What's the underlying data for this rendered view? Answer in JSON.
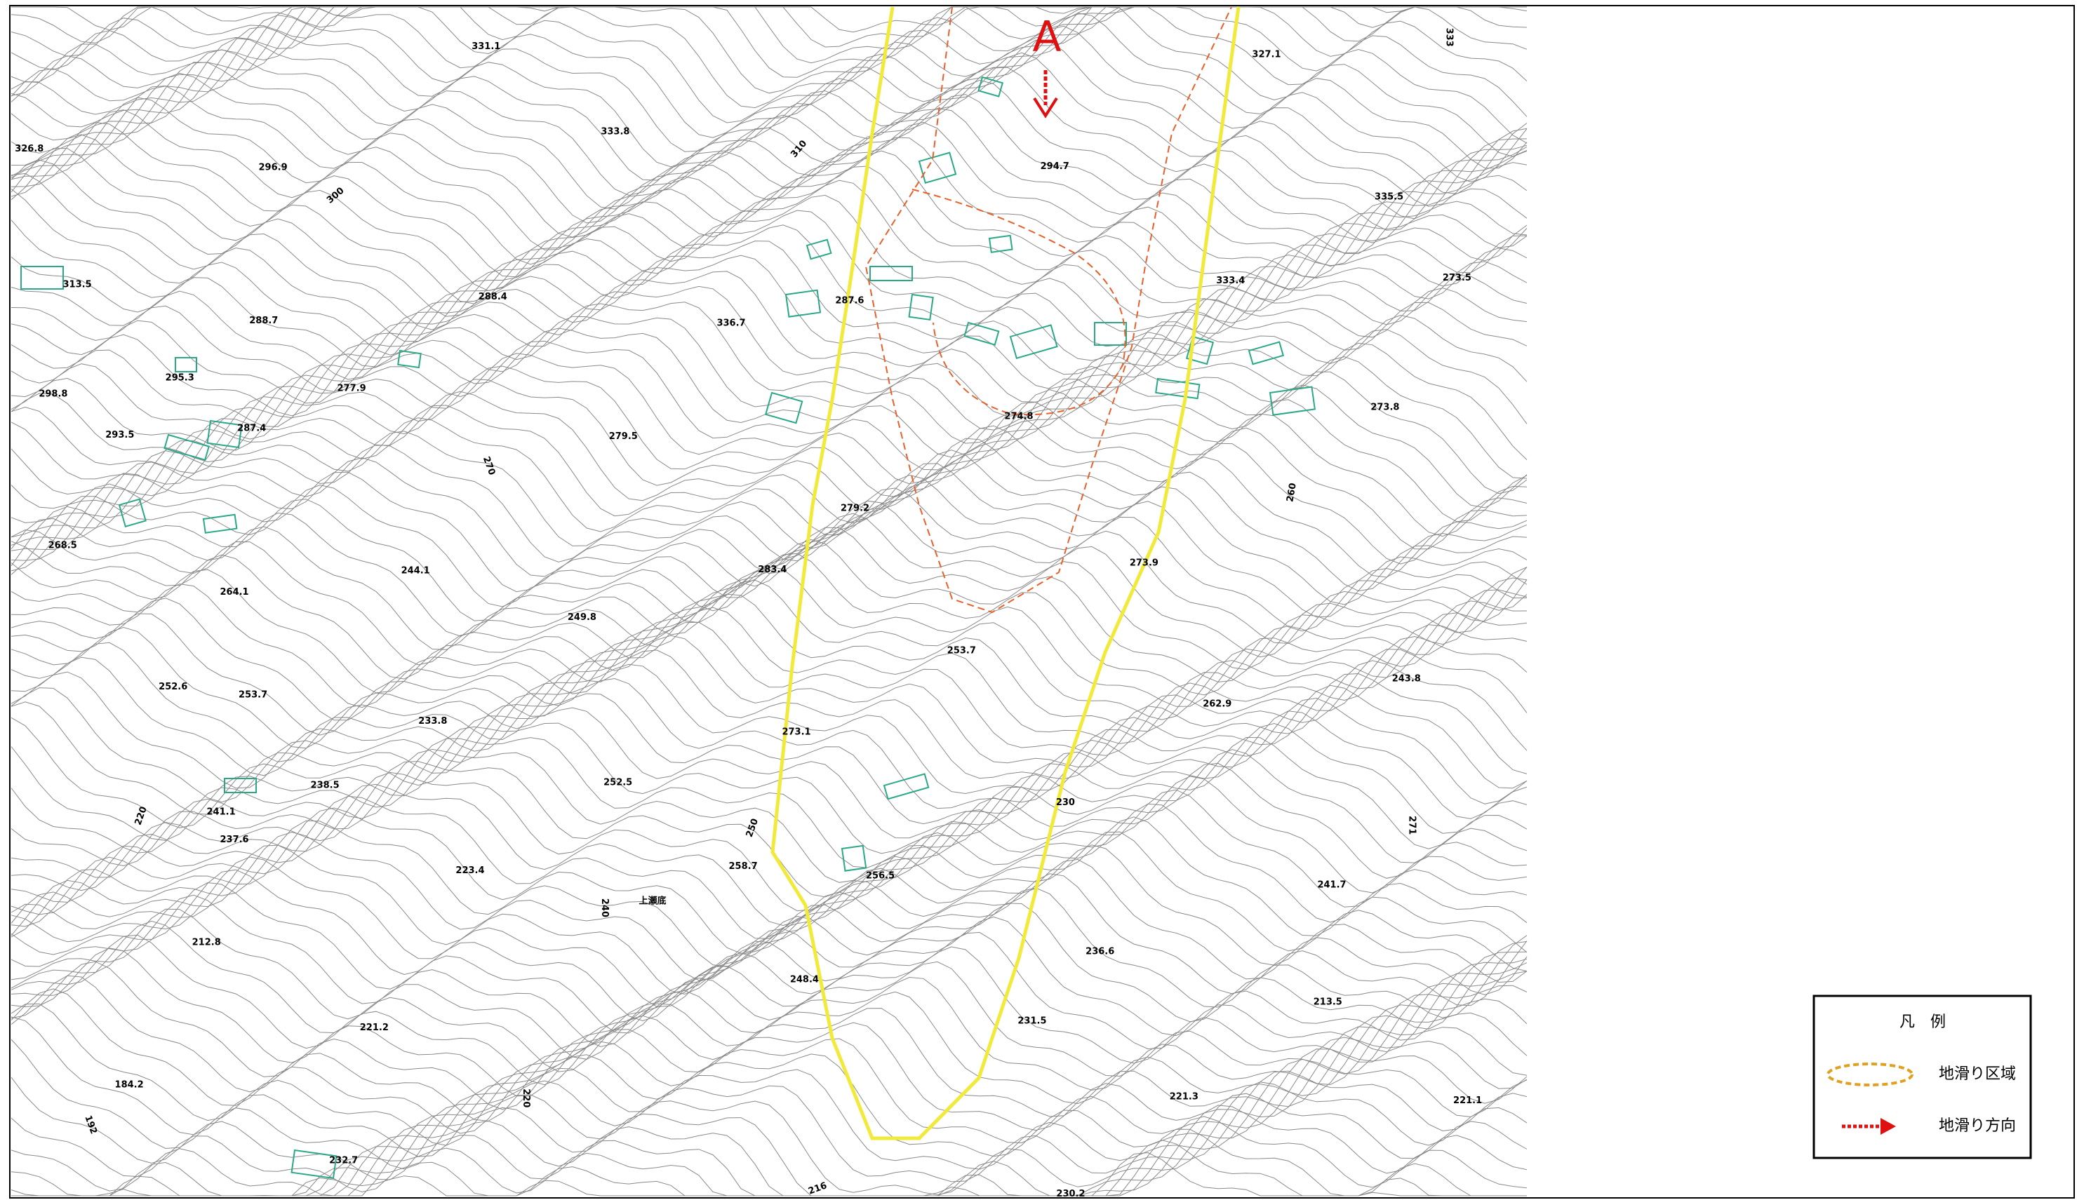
{
  "map": {
    "marker": "A",
    "labels": [
      "331.1",
      "326.8",
      "296.9",
      "300",
      "333.8",
      "310",
      "313.5",
      "288.4",
      "288.7",
      "336.7",
      "287.6",
      "295.3",
      "277.9",
      "298.8",
      "293.5",
      "287.4",
      "279.5",
      "270",
      "294.7",
      "327.1",
      "333",
      "335.5",
      "333.4",
      "273.5",
      "273.8",
      "274.8",
      "279.2",
      "268.5",
      "264.1",
      "244.1",
      "283.4",
      "273.9",
      "260",
      "249.8",
      "253.7",
      "252.6",
      "253.7",
      "233.8",
      "262.9",
      "243.8",
      "273.1",
      "252.5",
      "238.5",
      "230",
      "241.1",
      "237.6",
      "220",
      "250",
      "258.7",
      "256.5",
      "223.4",
      "240",
      "上瀬底",
      "271",
      "241.7",
      "212.8",
      "236.6",
      "248.4",
      "221.2",
      "231.5",
      "213.5",
      "184.2",
      "220",
      "192",
      "221.3",
      "221.1",
      "232.7",
      "216",
      "230.2"
    ],
    "legend": {
      "title": "凡　例",
      "items": [
        "地滑り区域",
        "地滑り方向"
      ]
    }
  }
}
